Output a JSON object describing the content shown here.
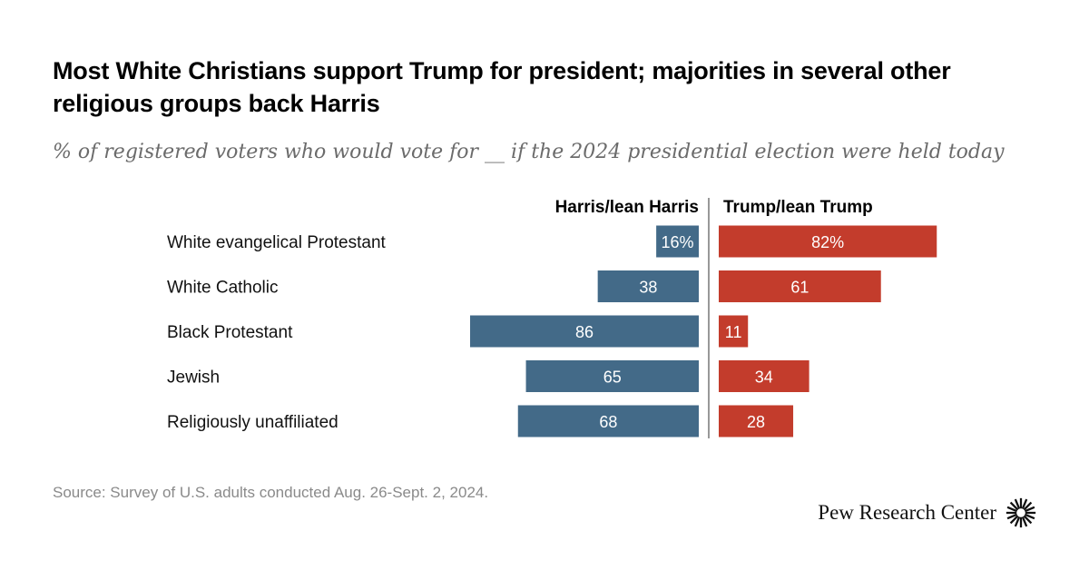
{
  "title": "Most White Christians support Trump for president; majorities in several other religious groups back Harris",
  "subtitle": "% of registered voters who would vote for __ if the 2024 presidential election were held today",
  "source": "Source: Survey of U.S. adults conducted Aug. 26-Sept. 2, 2024.",
  "logo_text": "Pew Research Center",
  "chart_data": {
    "type": "bar",
    "orientation": "diverging-horizontal",
    "categories": [
      "White evangelical Protestant",
      "White Catholic",
      "Black Protestant",
      "Jewish",
      "Religiously unaffiliated"
    ],
    "series": [
      {
        "name": "Harris/lean Harris",
        "values": [
          16,
          38,
          86,
          65,
          68
        ],
        "labels": [
          "16%",
          "38",
          "86",
          "65",
          "68"
        ],
        "color": "#436a88"
      },
      {
        "name": "Trump/lean Trump",
        "values": [
          82,
          61,
          11,
          34,
          28
        ],
        "labels": [
          "82%",
          "61",
          "11",
          "34",
          "28"
        ],
        "color": "#c33c2c"
      }
    ],
    "xlim": [
      0,
      100
    ],
    "grid": false,
    "legend": "column headers"
  }
}
